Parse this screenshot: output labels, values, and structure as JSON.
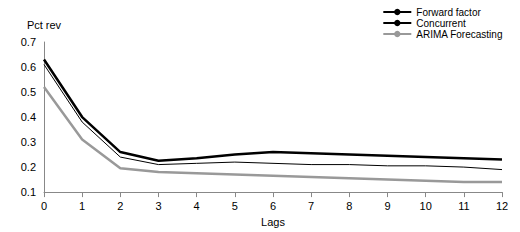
{
  "chart_data": {
    "type": "line",
    "y_label": "Pct rev",
    "x_label": "Lags",
    "x": [
      0,
      1,
      2,
      3,
      4,
      5,
      6,
      7,
      8,
      9,
      10,
      11,
      12
    ],
    "series": [
      {
        "name": "Forward factor",
        "color": "#000000",
        "values": [
          0.63,
          0.4,
          0.26,
          0.225,
          0.235,
          0.25,
          0.26,
          0.255,
          0.25,
          0.245,
          0.24,
          0.235,
          0.23
        ]
      },
      {
        "name": "Concurrent",
        "color": "#000000",
        "values": [
          0.61,
          0.38,
          0.24,
          0.21,
          0.215,
          0.22,
          0.215,
          0.21,
          0.21,
          0.205,
          0.205,
          0.2,
          0.19
        ]
      },
      {
        "name": "ARIMA Forecasting",
        "color": "#999999",
        "values": [
          0.52,
          0.31,
          0.195,
          0.18,
          0.175,
          0.17,
          0.165,
          0.16,
          0.155,
          0.15,
          0.145,
          0.14,
          0.14
        ]
      }
    ],
    "xlim": [
      0,
      12
    ],
    "xticks": [
      0,
      1,
      2,
      3,
      4,
      5,
      6,
      7,
      8,
      9,
      10,
      11,
      12
    ],
    "ylim": [
      0.1,
      0.7
    ],
    "yticks": [
      0.1,
      0.2,
      0.3,
      0.4,
      0.5,
      0.6,
      0.7
    ],
    "grid": false,
    "legend": "top-right"
  }
}
